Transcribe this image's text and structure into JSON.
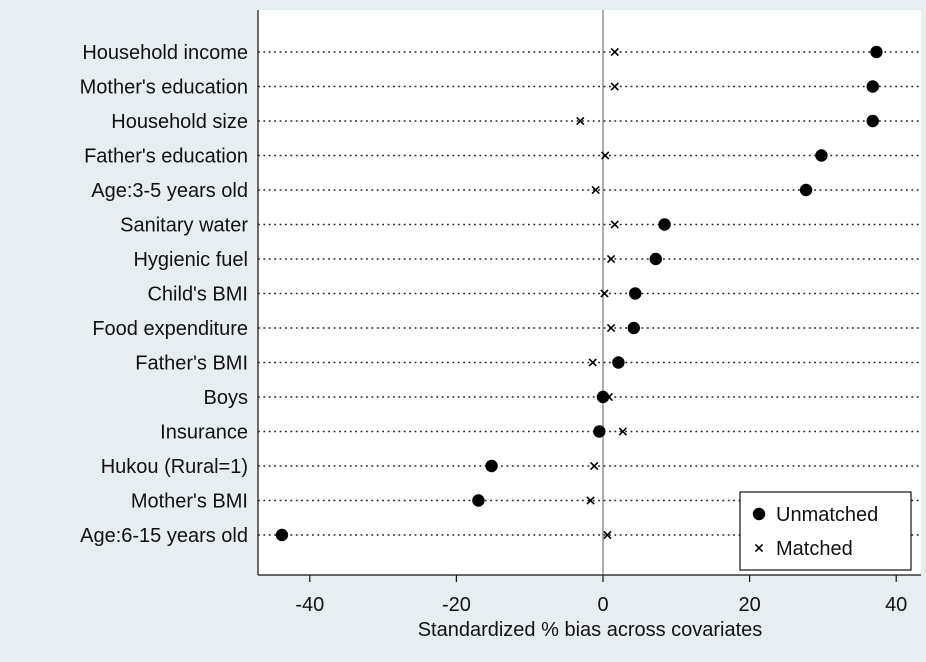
{
  "chart_data": {
    "type": "scatter",
    "title": "",
    "xlabel": "Standardized % bias across covariates",
    "ylabel": "",
    "xlim": [
      -47,
      43
    ],
    "xticks": [
      -40,
      -20,
      0,
      20,
      40
    ],
    "grid": false,
    "legend_position": "bottom-right",
    "categories": [
      "Household income",
      "Mother's education",
      "Household size",
      "Father's education",
      "Age:3-5 years old",
      "Sanitary water",
      "Hygienic fuel",
      "Child's BMI",
      "Food expenditure",
      "Father's BMI",
      "Boys",
      "Insurance",
      "Hukou (Rural=1)",
      "Mother's BMI",
      "Age:6-15 years old"
    ],
    "series": [
      {
        "name": "Unmatched",
        "marker": "filled-circle",
        "values": [
          37.3,
          36.8,
          36.8,
          29.8,
          27.7,
          8.4,
          7.2,
          4.4,
          4.2,
          2.1,
          0.0,
          -0.5,
          -15.2,
          -17.0,
          -43.8
        ]
      },
      {
        "name": "Matched",
        "marker": "x",
        "values": [
          1.6,
          1.6,
          -3.1,
          0.3,
          -1.0,
          1.6,
          1.1,
          0.2,
          1.1,
          -1.4,
          0.8,
          2.7,
          -1.2,
          -1.7,
          0.6
        ]
      }
    ],
    "colors": {
      "background": "#e7eef1",
      "plot_background": "#ffffff",
      "marker": "#000000"
    }
  }
}
